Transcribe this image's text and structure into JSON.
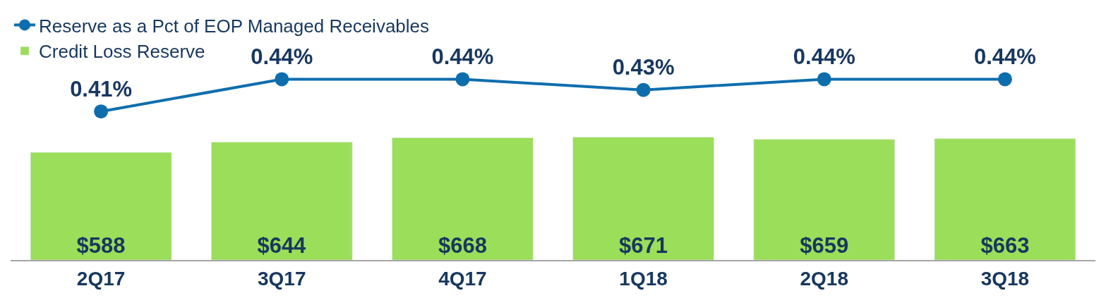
{
  "chart_data": [
    {
      "type": "line",
      "categories": [
        "2Q17",
        "3Q17",
        "4Q17",
        "1Q18",
        "2Q18",
        "3Q18"
      ],
      "series": [
        {
          "name": "Reserve as a Pct of EOP Managed Receivables",
          "color": "#0e6ead",
          "values": [
            0.41,
            0.44,
            0.44,
            0.43,
            0.44,
            0.44
          ],
          "value_labels": [
            "0.41%",
            "0.44%",
            "0.44%",
            "0.43%",
            "0.44%",
            "0.44%"
          ]
        }
      ],
      "tick_labels": false,
      "legend": "top left",
      "marker": "circle",
      "line_style": "solid"
    },
    {
      "type": "bar",
      "categories": [
        "2Q17",
        "3Q17",
        "4Q17",
        "1Q18",
        "2Q18",
        "3Q18"
      ],
      "series": [
        {
          "name": "Credit Loss Reserve",
          "color": "#9bde5a",
          "values": [
            588,
            644,
            668,
            671,
            659,
            663
          ],
          "value_labels": [
            "$588",
            "$644",
            "$668",
            "$671",
            "$659",
            "$663"
          ]
        }
      ],
      "tick_labels": "x",
      "legend": "top left"
    }
  ]
}
